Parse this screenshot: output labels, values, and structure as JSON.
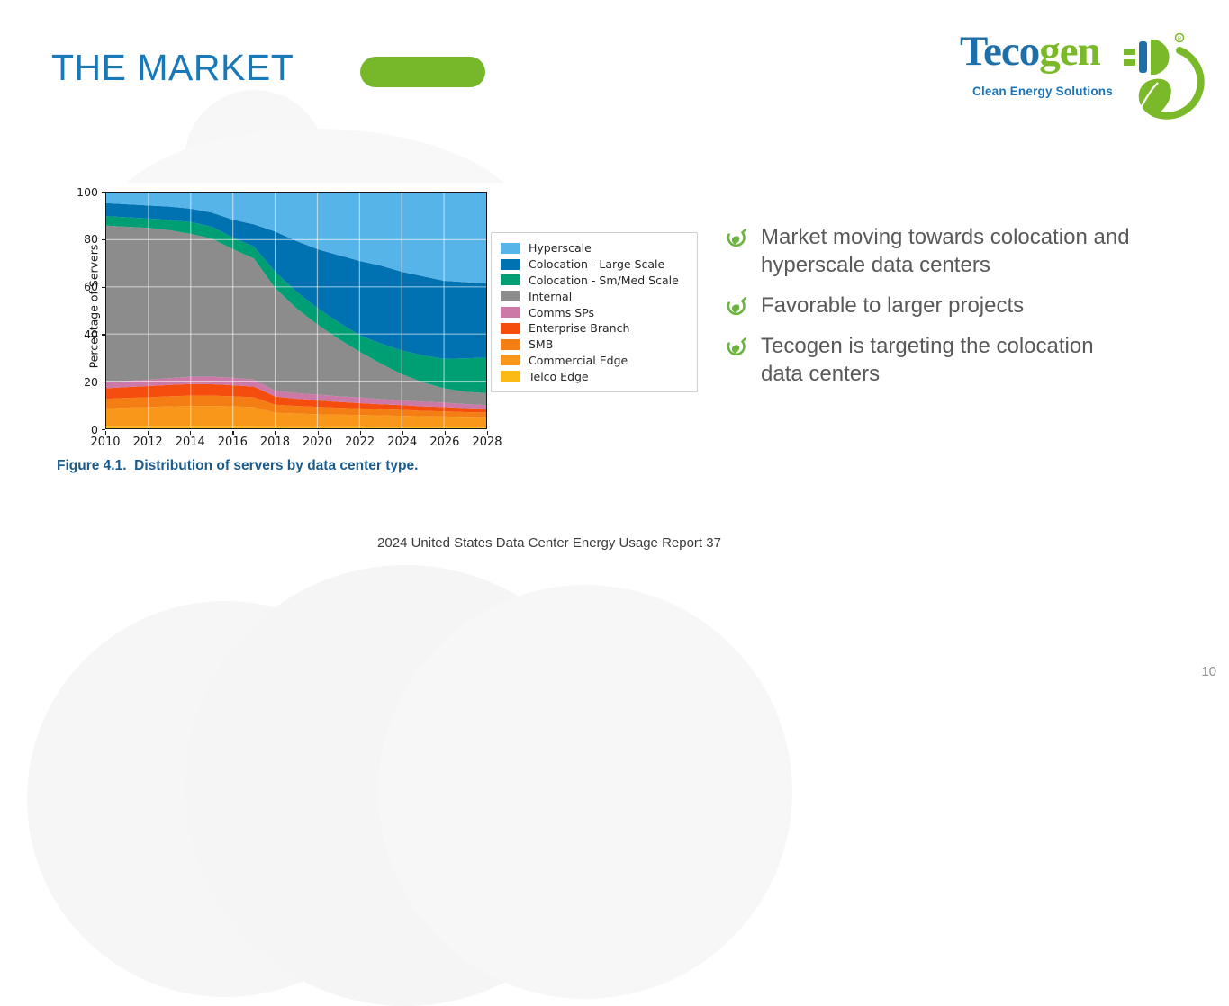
{
  "slide": {
    "title": "THE MARKET",
    "figure_caption": "Figure 4.1.  Distribution of servers by data center type.",
    "source_line": "2024 United States Data Center Energy Usage Report 37",
    "page_number": "10",
    "accent_green": "#76B82A",
    "title_blue": "#1878B8",
    "caption_blue": "#1A5B8C",
    "body_text_gray": "#595959"
  },
  "logo": {
    "brand_part1": "Teco",
    "brand_part2": "gen",
    "registered_mark": "®",
    "tagline": "Clean Energy Solutions",
    "brand_blue": "#1E6FA8",
    "brand_green": "#7AB929",
    "tagline_blue": "#1B75BB"
  },
  "bullets": [
    {
      "lines": [
        "Market moving towards colocation and",
        "hyperscale data centers"
      ]
    },
    {
      "lines": [
        "Favorable to larger projects"
      ]
    },
    {
      "lines": [
        "Tecogen is targeting the colocation",
        "data centers"
      ]
    }
  ],
  "chart_data": {
    "type": "area",
    "stacked": true,
    "title": "",
    "xlabel": "",
    "ylabel": "Percentage of Servers",
    "ylim": [
      0,
      100
    ],
    "y_ticks": [
      0,
      20,
      40,
      60,
      80,
      100
    ],
    "grid": true,
    "legend_position": "right of plot",
    "x": [
      2010,
      2011,
      2012,
      2013,
      2014,
      2015,
      2016,
      2017,
      2018,
      2019,
      2020,
      2021,
      2022,
      2023,
      2024,
      2025,
      2026,
      2027,
      2028
    ],
    "x_tick_labels": [
      "2010",
      "2012",
      "2014",
      "2016",
      "2018",
      "2020",
      "2022",
      "2024",
      "2026",
      "2028"
    ],
    "series": [
      {
        "name": "Telco Edge",
        "color": "#FBBA16",
        "values": [
          1,
          1,
          1,
          1,
          1,
          1,
          1,
          1,
          0.8,
          0.8,
          0.8,
          0.8,
          0.8,
          0.7,
          0.7,
          0.7,
          0.7,
          0.7,
          0.7
        ]
      },
      {
        "name": "Commercial Edge",
        "color": "#F9971B",
        "values": [
          7.5,
          7.8,
          8,
          8.3,
          8.5,
          8.5,
          8.3,
          8,
          5.8,
          5.5,
          5.2,
          5,
          4.9,
          4.8,
          4.6,
          4.4,
          4.3,
          4.2,
          4.1
        ]
      },
      {
        "name": "SMB",
        "color": "#F57E14",
        "values": [
          4,
          4.1,
          4.2,
          4.3,
          4.4,
          4.4,
          4.3,
          4.2,
          3.4,
          3.2,
          3.1,
          2.9,
          2.8,
          2.6,
          2.5,
          2.3,
          2.2,
          2,
          1.9
        ]
      },
      {
        "name": "Enterprise Branch",
        "color": "#F44D0D",
        "values": [
          4.5,
          4.6,
          4.7,
          4.8,
          4.9,
          4.8,
          4.7,
          4.5,
          3.5,
          3.1,
          2.8,
          2.5,
          2.2,
          2.1,
          2,
          1.9,
          1.8,
          1.7,
          1.6
        ]
      },
      {
        "name": "Comms SPs",
        "color": "#CC79A7",
        "values": [
          2.5,
          2.6,
          2.7,
          2.9,
          3.1,
          3.2,
          3.1,
          3,
          2.4,
          2.4,
          2.4,
          2.4,
          2.4,
          2.2,
          2.1,
          2,
          1.9,
          1.7,
          1.6
        ]
      },
      {
        "name": "Internal",
        "color": "#8C8C8C",
        "values": [
          66.5,
          65.4,
          64.4,
          62.7,
          60.6,
          58.6,
          54.6,
          51.3,
          43.6,
          36,
          29.7,
          24.4,
          19.4,
          15.1,
          11.1,
          8.2,
          6.1,
          5.2,
          5.1
        ]
      },
      {
        "name": "Colocation - Sm/Med Scale",
        "color": "#009E73",
        "values": [
          4,
          4,
          4,
          4.3,
          5,
          5,
          5,
          5,
          6.9,
          7,
          7,
          7,
          7,
          8.5,
          10,
          11.5,
          12.5,
          14.2,
          15
        ]
      },
      {
        "name": "Colocation - Large Scale",
        "color": "#0072B2",
        "values": [
          5.5,
          5.5,
          5.5,
          5.7,
          5.7,
          6,
          7.5,
          9.5,
          17.1,
          21.5,
          25,
          28.5,
          31.5,
          33,
          33.4,
          33.5,
          33.1,
          32.3,
          31.4
        ]
      },
      {
        "name": "Hyperscale",
        "color": "#56B4E9",
        "values": [
          4.5,
          5,
          5.5,
          6,
          6.8,
          8.5,
          11.5,
          13.5,
          16.5,
          20.5,
          24,
          26.5,
          29,
          31,
          33.6,
          35.5,
          37.4,
          38,
          38.6
        ]
      }
    ]
  }
}
